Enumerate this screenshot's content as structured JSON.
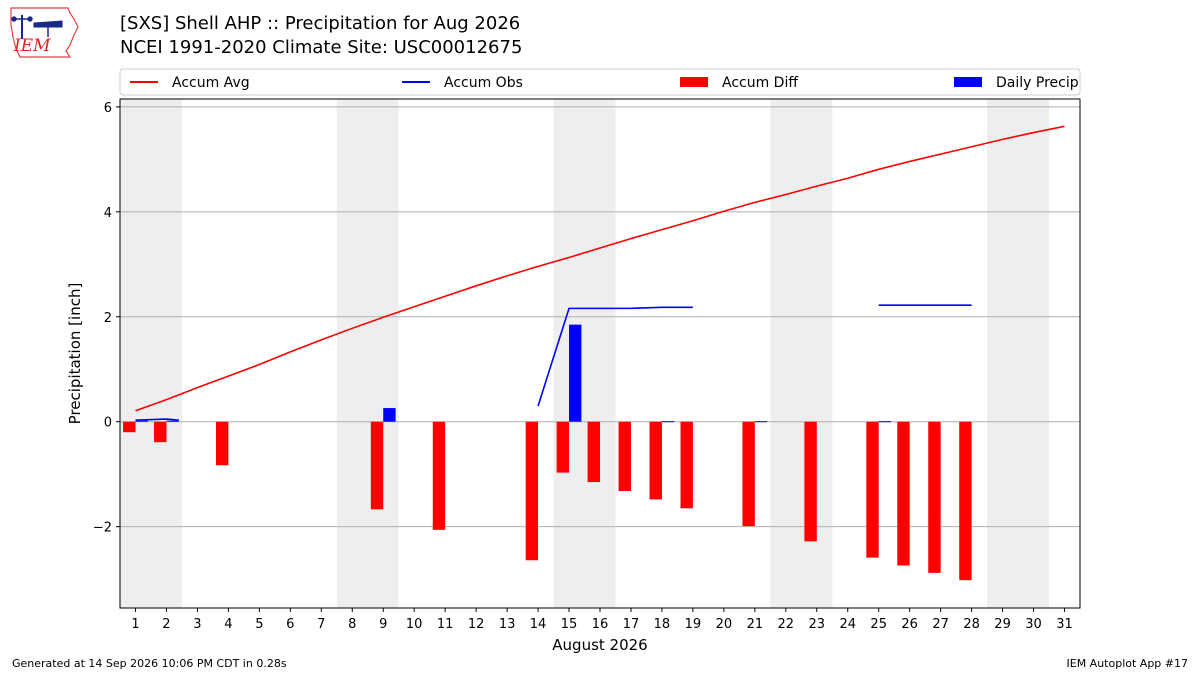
{
  "header": {
    "logo_text": "IEM",
    "title_line1": "[SXS] Shell AHP :: Precipitation for Aug 2026",
    "title_line2": "NCEI 1991-2020 Climate Site: USC00012675"
  },
  "footer": {
    "left": "Generated at 14 Sep 2026 10:06 PM CDT in 0.28s",
    "right": "IEM Autoplot App #17"
  },
  "colors": {
    "avg": "#ff0000",
    "obs": "#0000ff",
    "diff": "#ff0000",
    "daily": "#0000ff",
    "weekend_band": "#eeeeee",
    "grid": "#b0b0b0"
  },
  "chart_data": {
    "type": "bar",
    "xlabel": "August 2026",
    "ylabel": "Precipitation [inch]",
    "x": [
      1,
      2,
      3,
      4,
      5,
      6,
      7,
      8,
      9,
      10,
      11,
      12,
      13,
      14,
      15,
      16,
      17,
      18,
      19,
      20,
      21,
      22,
      23,
      24,
      25,
      26,
      27,
      28,
      29,
      30,
      31
    ],
    "xlim": [
      0.5,
      31.5
    ],
    "ylim": [
      -3.55,
      6.15
    ],
    "yticks": [
      -2,
      0,
      2,
      4,
      6
    ],
    "ytick_labels": [
      "−2",
      "0",
      "2",
      "4",
      "6"
    ],
    "grid": "y",
    "legend": {
      "placement": "top",
      "entries": [
        "Accum Avg",
        "Accum Obs",
        "Accum Diff",
        "Daily Precip"
      ]
    },
    "weekend_days": [
      1,
      2,
      8,
      9,
      15,
      16,
      22,
      23,
      29,
      30
    ],
    "series": [
      {
        "name": "Accum Avg",
        "kind": "line",
        "x": [
          1,
          2,
          3,
          4,
          5,
          6,
          7,
          8,
          9,
          10,
          11,
          12,
          13,
          14,
          15,
          16,
          17,
          18,
          19,
          20,
          21,
          22,
          23,
          24,
          25,
          26,
          27,
          28,
          29,
          30,
          31
        ],
        "values": [
          0.21,
          0.42,
          0.65,
          0.87,
          1.09,
          1.33,
          1.56,
          1.78,
          1.99,
          2.19,
          2.39,
          2.59,
          2.78,
          2.96,
          3.13,
          3.31,
          3.49,
          3.66,
          3.83,
          4.01,
          4.18,
          4.33,
          4.49,
          4.64,
          4.81,
          4.96,
          5.1,
          5.24,
          5.38,
          5.51,
          5.63
        ]
      },
      {
        "name": "Accum Obs",
        "kind": "line",
        "segments": [
          {
            "x": [
              1,
              2,
              2.4
            ],
            "values": [
              0.03,
              0.05,
              0.03
            ]
          },
          {
            "x": [
              14,
              15,
              16,
              17,
              18,
              19
            ],
            "values": [
              0.3,
              2.16,
              2.16,
              2.16,
              2.18,
              2.18
            ]
          },
          {
            "x": [
              25,
              26,
              27,
              28
            ],
            "values": [
              2.22,
              2.22,
              2.22,
              2.22
            ]
          }
        ]
      },
      {
        "name": "Accum Diff",
        "kind": "bar",
        "x": [
          1,
          2,
          4,
          9,
          11,
          14,
          15,
          16,
          17,
          18,
          19,
          21,
          23,
          25,
          26,
          27,
          28
        ],
        "values": [
          -0.2,
          -0.39,
          -0.83,
          -1.67,
          -2.06,
          -2.64,
          -0.97,
          -1.15,
          -1.32,
          -1.48,
          -1.65,
          -1.99,
          -2.28,
          -2.59,
          -2.74,
          -2.88,
          -3.02
        ]
      },
      {
        "name": "Daily Precip",
        "kind": "bar",
        "x": [
          1,
          2,
          9,
          15,
          18,
          21,
          25
        ],
        "values": [
          0.02,
          0.02,
          0.26,
          1.85,
          0.01,
          0.01,
          0.01
        ]
      }
    ]
  }
}
